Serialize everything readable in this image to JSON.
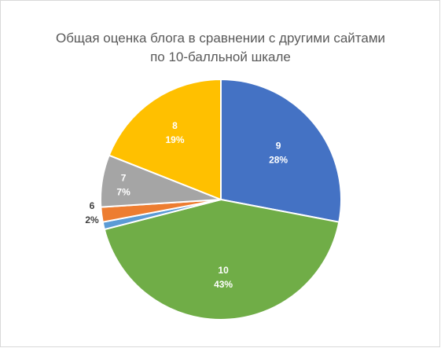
{
  "chart_data": {
    "type": "pie",
    "title_lines": [
      "Общая оценка блога в сравнении с другими сайтами",
      "по 10-балльной шкале"
    ],
    "slices": [
      {
        "label": "9",
        "percent_label": "28%",
        "value": 28,
        "color": "#4472c4"
      },
      {
        "label": "10",
        "percent_label": "43%",
        "value": 43,
        "color": "#70ad47"
      },
      {
        "label": "",
        "percent_label": "",
        "value": 1,
        "color": "#5b9bd5"
      },
      {
        "label": "6",
        "percent_label": "2%",
        "value": 2,
        "color": "#ed7d31"
      },
      {
        "label": "7",
        "percent_label": "7%",
        "value": 7,
        "color": "#a5a5a5"
      },
      {
        "label": "8",
        "percent_label": "19%",
        "value": 19,
        "color": "#ffc000"
      }
    ]
  }
}
